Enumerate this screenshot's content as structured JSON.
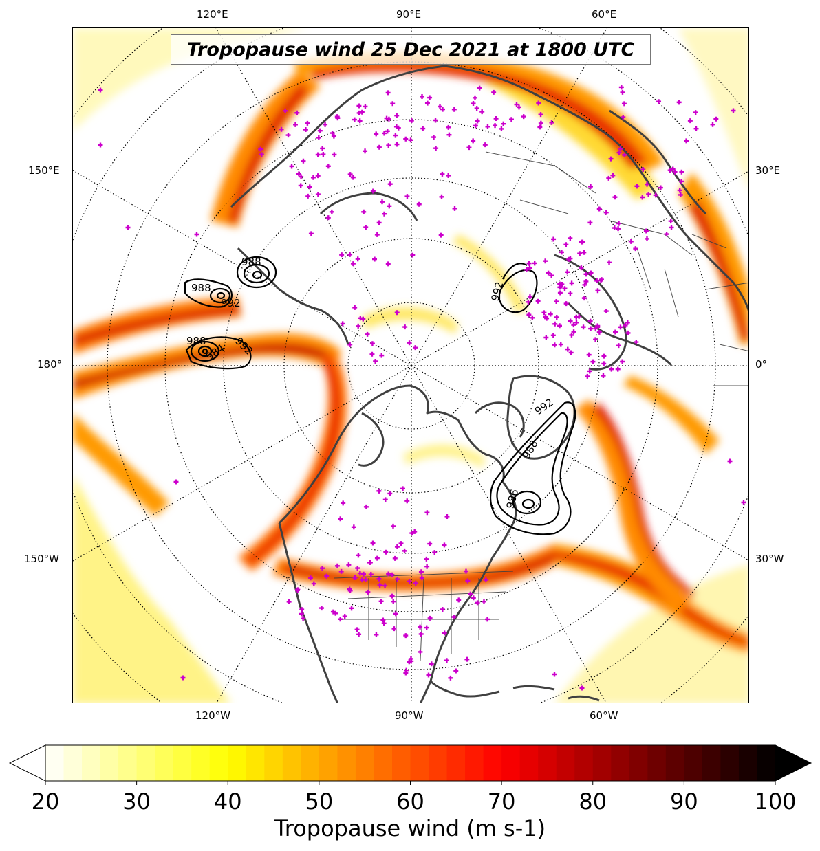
{
  "title": "Tropopause wind 25 Dec 2021 at 1800 UTC",
  "longitude_labels": {
    "top": [
      "120°E",
      "90°E",
      "60°E"
    ],
    "left": [
      "150°E",
      "180°",
      "150°W"
    ],
    "right": [
      "30°E",
      "0°",
      "30°W"
    ],
    "bottom": [
      "120°W",
      "90°W",
      "60°W"
    ]
  },
  "colorbar": {
    "label": "Tropopause wind (m s-1)",
    "min": 20,
    "max": 100,
    "ticks": [
      "20",
      "30",
      "40",
      "50",
      "60",
      "70",
      "80",
      "90",
      "100"
    ],
    "extend": "both",
    "colormap": "hot_r"
  },
  "pressure_contours": {
    "color": "#000000",
    "labels": [
      "988",
      "988",
      "992",
      "988",
      "984",
      "992",
      "992",
      "992",
      "988",
      "986"
    ]
  },
  "colors": {
    "observation_marker": "#cc00cc",
    "coastline": "#404040",
    "graticule": "#000000",
    "jet_core": "#cc0000",
    "jet_edge": "#ffee00"
  },
  "observation_marker_symbol": "+"
}
